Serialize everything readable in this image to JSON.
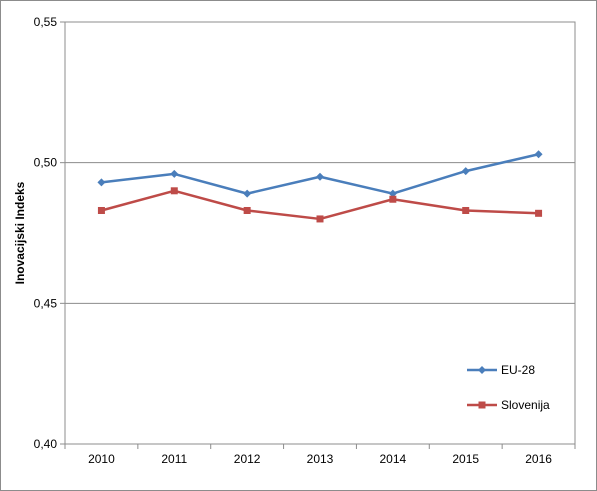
{
  "chart_data": {
    "type": "line",
    "title": "",
    "xlabel": "",
    "ylabel": "Inovacijski Indeks",
    "categories": [
      "2010",
      "2011",
      "2012",
      "2013",
      "2014",
      "2015",
      "2016"
    ],
    "series": [
      {
        "name": "EU-28",
        "color": "#4a7ebb",
        "marker": "diamond",
        "values": [
          0.493,
          0.496,
          0.489,
          0.495,
          0.489,
          0.497,
          0.503
        ]
      },
      {
        "name": "Slovenija",
        "color": "#be4b48",
        "marker": "square",
        "values": [
          0.483,
          0.49,
          0.483,
          0.48,
          0.487,
          0.483,
          0.482
        ]
      }
    ],
    "ylim": [
      0.4,
      0.55
    ],
    "yticks": [
      "0,40",
      "0,45",
      "0,50",
      "0,55"
    ],
    "ytick_values": [
      0.4,
      0.45,
      0.5,
      0.55
    ],
    "grid": "horizontal",
    "legend_position": "bottom-right"
  }
}
